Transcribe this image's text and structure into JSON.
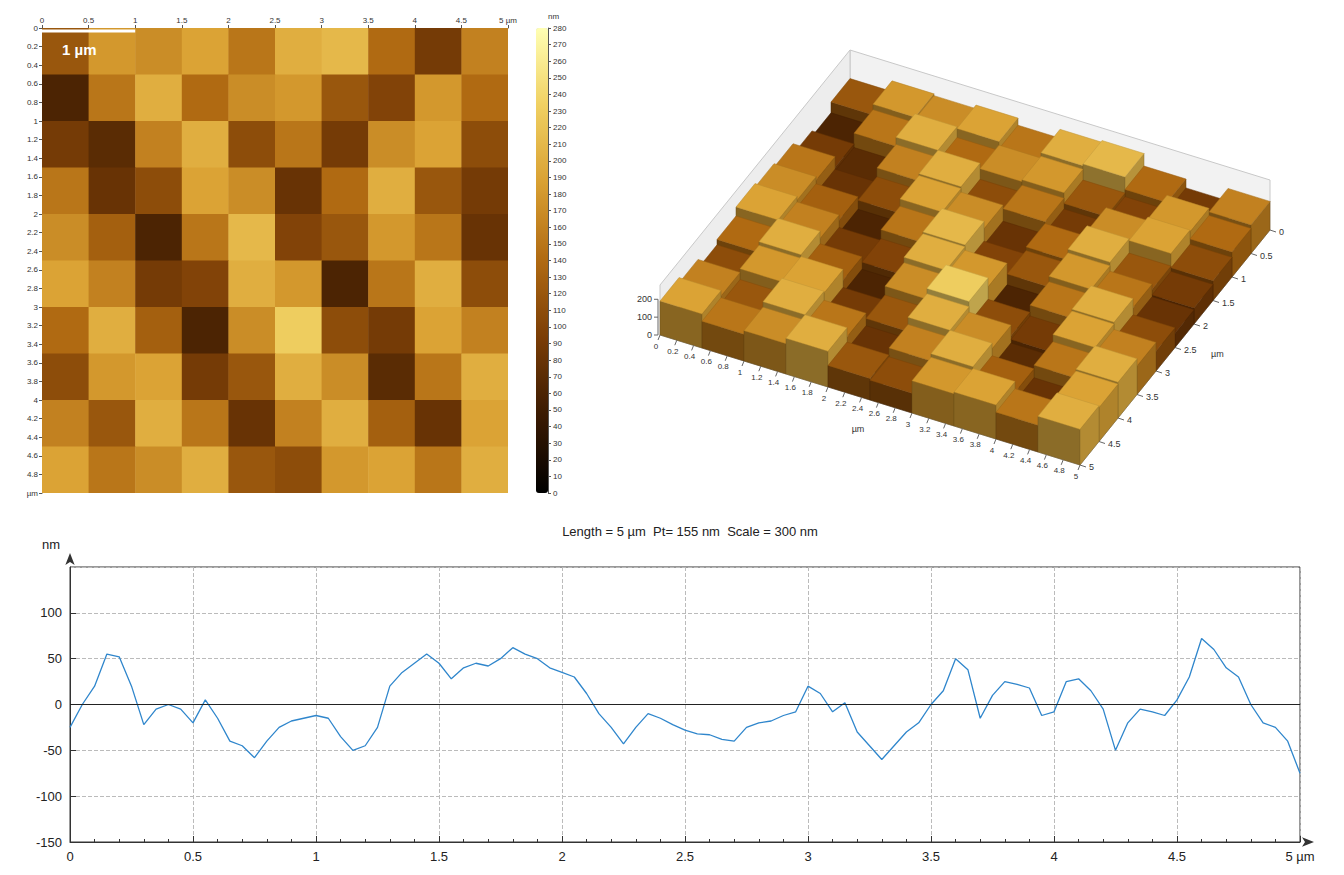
{
  "chart_data": [
    {
      "type": "heatmap",
      "annotation": "1 µm",
      "scale_bar": [
        0,
        1
      ],
      "x_edges": [
        0,
        0.5,
        1,
        1.5,
        2,
        2.5,
        3,
        3.5,
        4,
        4.5,
        5
      ],
      "y_edges": [
        0,
        0.5,
        1,
        1.5,
        2,
        2.5,
        3,
        3.5,
        4,
        4.5,
        5
      ],
      "cells": [
        [
          120,
          180,
          170,
          190,
          150,
          200,
          210,
          140,
          90,
          160
        ],
        [
          60,
          150,
          200,
          140,
          170,
          180,
          120,
          100,
          180,
          140
        ],
        [
          90,
          70,
          160,
          200,
          110,
          150,
          90,
          170,
          190,
          110
        ],
        [
          150,
          80,
          110,
          190,
          170,
          80,
          140,
          200,
          120,
          90
        ],
        [
          170,
          130,
          60,
          150,
          210,
          100,
          120,
          180,
          150,
          80
        ],
        [
          190,
          160,
          90,
          100,
          200,
          180,
          60,
          150,
          200,
          110
        ],
        [
          140,
          200,
          130,
          60,
          170,
          230,
          110,
          90,
          190,
          160
        ],
        [
          110,
          180,
          190,
          90,
          120,
          200,
          170,
          70,
          150,
          200
        ],
        [
          160,
          120,
          200,
          150,
          80,
          160,
          200,
          130,
          80,
          190
        ],
        [
          190,
          150,
          170,
          200,
          120,
          110,
          180,
          190,
          150,
          200
        ]
      ],
      "xlim": [
        0,
        5
      ],
      "xticks": [
        0,
        0.5,
        1,
        1.5,
        2,
        2.5,
        3,
        3.5,
        4,
        4.5,
        {
          "value": 5,
          "label": "5 µm"
        }
      ],
      "ylim": [
        0,
        5
      ],
      "yticks": [
        0,
        0.2,
        0.4,
        0.6,
        0.8,
        1,
        1.2,
        1.4,
        1.6,
        1.8,
        2,
        2.2,
        2.4,
        2.6,
        2.8,
        3,
        3.2,
        3.4,
        3.6,
        3.8,
        4,
        4.2,
        4.4,
        4.6,
        4.8,
        {
          "value": 5,
          "label": "µm"
        }
      ],
      "colorbar": {
        "label": "nm",
        "range": [
          0,
          280
        ],
        "ticks": [
          0,
          10,
          20,
          30,
          40,
          50,
          60,
          70,
          80,
          90,
          100,
          110,
          120,
          130,
          140,
          150,
          160,
          170,
          180,
          190,
          200,
          210,
          220,
          230,
          240,
          250,
          260,
          270,
          280
        ],
        "colors": [
          "#000000",
          "#3a1a02",
          "#7a3d06",
          "#b06a12",
          "#d9a032",
          "#f0d062",
          "#ffffb4"
        ]
      }
    },
    {
      "type": "surface",
      "x_label": "µm",
      "y_label": "µm",
      "xlim": [
        0,
        5
      ],
      "xticks": [
        0,
        0.2,
        0.4,
        0.6,
        0.8,
        1,
        1.2,
        1.4,
        1.6,
        1.8,
        2,
        2.2,
        2.4,
        2.6,
        2.8,
        3,
        3.2,
        3.4,
        3.6,
        3.8,
        4,
        4.2,
        4.4,
        4.6,
        4.8,
        5
      ],
      "ylim": [
        0,
        5
      ],
      "yticks": [
        0,
        0.5,
        1,
        1.5,
        2,
        2.5,
        3,
        3.5,
        4,
        4.5,
        5
      ],
      "zlim": [
        0,
        280
      ],
      "zticks": [
        0,
        100,
        200
      ]
    },
    {
      "type": "line",
      "title": "Length = 5 µm  Pt= 155 nm  Scale = 300 nm",
      "y_label": "nm",
      "x": [
        0,
        0.05,
        0.1,
        0.15,
        0.2,
        0.25,
        0.3,
        0.35,
        0.4,
        0.45,
        0.5,
        0.55,
        0.6,
        0.65,
        0.7,
        0.75,
        0.8,
        0.85,
        0.9,
        0.95,
        1,
        1.05,
        1.1,
        1.15,
        1.2,
        1.25,
        1.3,
        1.35,
        1.4,
        1.45,
        1.5,
        1.55,
        1.6,
        1.65,
        1.7,
        1.75,
        1.8,
        1.85,
        1.9,
        1.95,
        2,
        2.05,
        2.1,
        2.15,
        2.2,
        2.25,
        2.3,
        2.35,
        2.4,
        2.45,
        2.5,
        2.55,
        2.6,
        2.65,
        2.7,
        2.75,
        2.8,
        2.85,
        2.9,
        2.95,
        3,
        3.05,
        3.1,
        3.15,
        3.2,
        3.25,
        3.3,
        3.35,
        3.4,
        3.45,
        3.5,
        3.55,
        3.6,
        3.65,
        3.7,
        3.75,
        3.8,
        3.85,
        3.9,
        3.95,
        4,
        4.05,
        4.1,
        4.15,
        4.2,
        4.25,
        4.3,
        4.35,
        4.4,
        4.45,
        4.5,
        4.55,
        4.6,
        4.65,
        4.7,
        4.75,
        4.8,
        4.85,
        4.9,
        4.95,
        5
      ],
      "values": [
        -25,
        0,
        20,
        55,
        52,
        20,
        -22,
        -5,
        0,
        -5,
        -20,
        5,
        -15,
        -40,
        -45,
        -58,
        -40,
        -25,
        -18,
        -15,
        -12,
        -15,
        -35,
        -50,
        -45,
        -25,
        20,
        35,
        45,
        55,
        45,
        28,
        40,
        45,
        42,
        50,
        62,
        55,
        50,
        40,
        35,
        30,
        12,
        -10,
        -25,
        -43,
        -25,
        -10,
        -15,
        -22,
        -28,
        -32,
        -33,
        -38,
        -40,
        -25,
        -20,
        -18,
        -12,
        -8,
        20,
        12,
        -8,
        2,
        -30,
        -45,
        -60,
        -45,
        -30,
        -20,
        0,
        15,
        50,
        38,
        -15,
        10,
        25,
        22,
        18,
        -12,
        -8,
        25,
        28,
        15,
        -5,
        -50,
        -20,
        -5,
        -8,
        -12,
        5,
        30,
        72,
        60,
        40,
        30,
        0,
        -20,
        -25,
        -40,
        -75
      ],
      "color": "#2f86cc",
      "xlim": [
        0,
        5
      ],
      "xticks": [
        0,
        0.5,
        1,
        1.5,
        2,
        2.5,
        3,
        3.5,
        4,
        4.5,
        {
          "value": 5,
          "label": "5 µm"
        }
      ],
      "ylim": [
        -150,
        150
      ],
      "yticks": [
        -150,
        -100,
        -50,
        0,
        50,
        100
      ],
      "baseline": 0,
      "grid": true
    }
  ]
}
